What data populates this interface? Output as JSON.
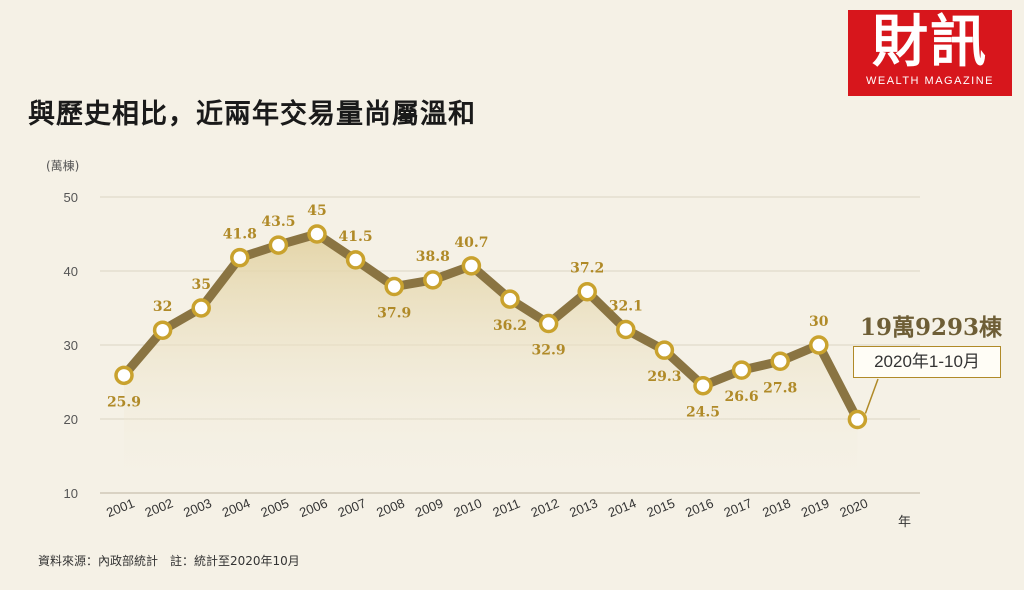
{
  "title": "與歷史相比，近兩年交易量尚屬溫和",
  "logo": {
    "name": "財訊",
    "subtitle": "WEALTH MAGAZINE"
  },
  "source": "資料來源：內政部統計　註：統計至2020年10月",
  "callout": {
    "value": "19萬9293棟",
    "period": "2020年1-10月"
  },
  "colors": {
    "line": "#8a7442",
    "marker_fill": "#ffffff",
    "marker_stroke": "#c9a22e",
    "label": "#b08a28",
    "area_top": "#e6d7ad",
    "accent": "#d7161c"
  },
  "chart_data": {
    "type": "line",
    "ylabel": "(萬棟)",
    "xlabel": "年",
    "ylim": [
      10,
      50
    ],
    "yticks": [
      10,
      20,
      30,
      40,
      50
    ],
    "grid": true,
    "categories": [
      "2001",
      "2002",
      "2003",
      "2004",
      "2005",
      "2006",
      "2007",
      "2008",
      "2009",
      "2010",
      "2011",
      "2012",
      "2013",
      "2014",
      "2015",
      "2016",
      "2017",
      "2018",
      "2019",
      "2020"
    ],
    "values": [
      25.9,
      32,
      35,
      41.8,
      43.5,
      45,
      41.5,
      37.9,
      38.8,
      40.7,
      36.2,
      32.9,
      37.2,
      32.1,
      29.3,
      24.5,
      26.6,
      27.8,
      30,
      19.9293
    ],
    "data_labels": [
      "25.9",
      "32",
      "35",
      "41.8",
      "43.5",
      "45",
      "41.5",
      "37.9",
      "38.8",
      "40.7",
      "36.2",
      "32.9",
      "37.2",
      "32.1",
      "29.3",
      "24.5",
      "26.6",
      "27.8",
      "30",
      ""
    ]
  }
}
